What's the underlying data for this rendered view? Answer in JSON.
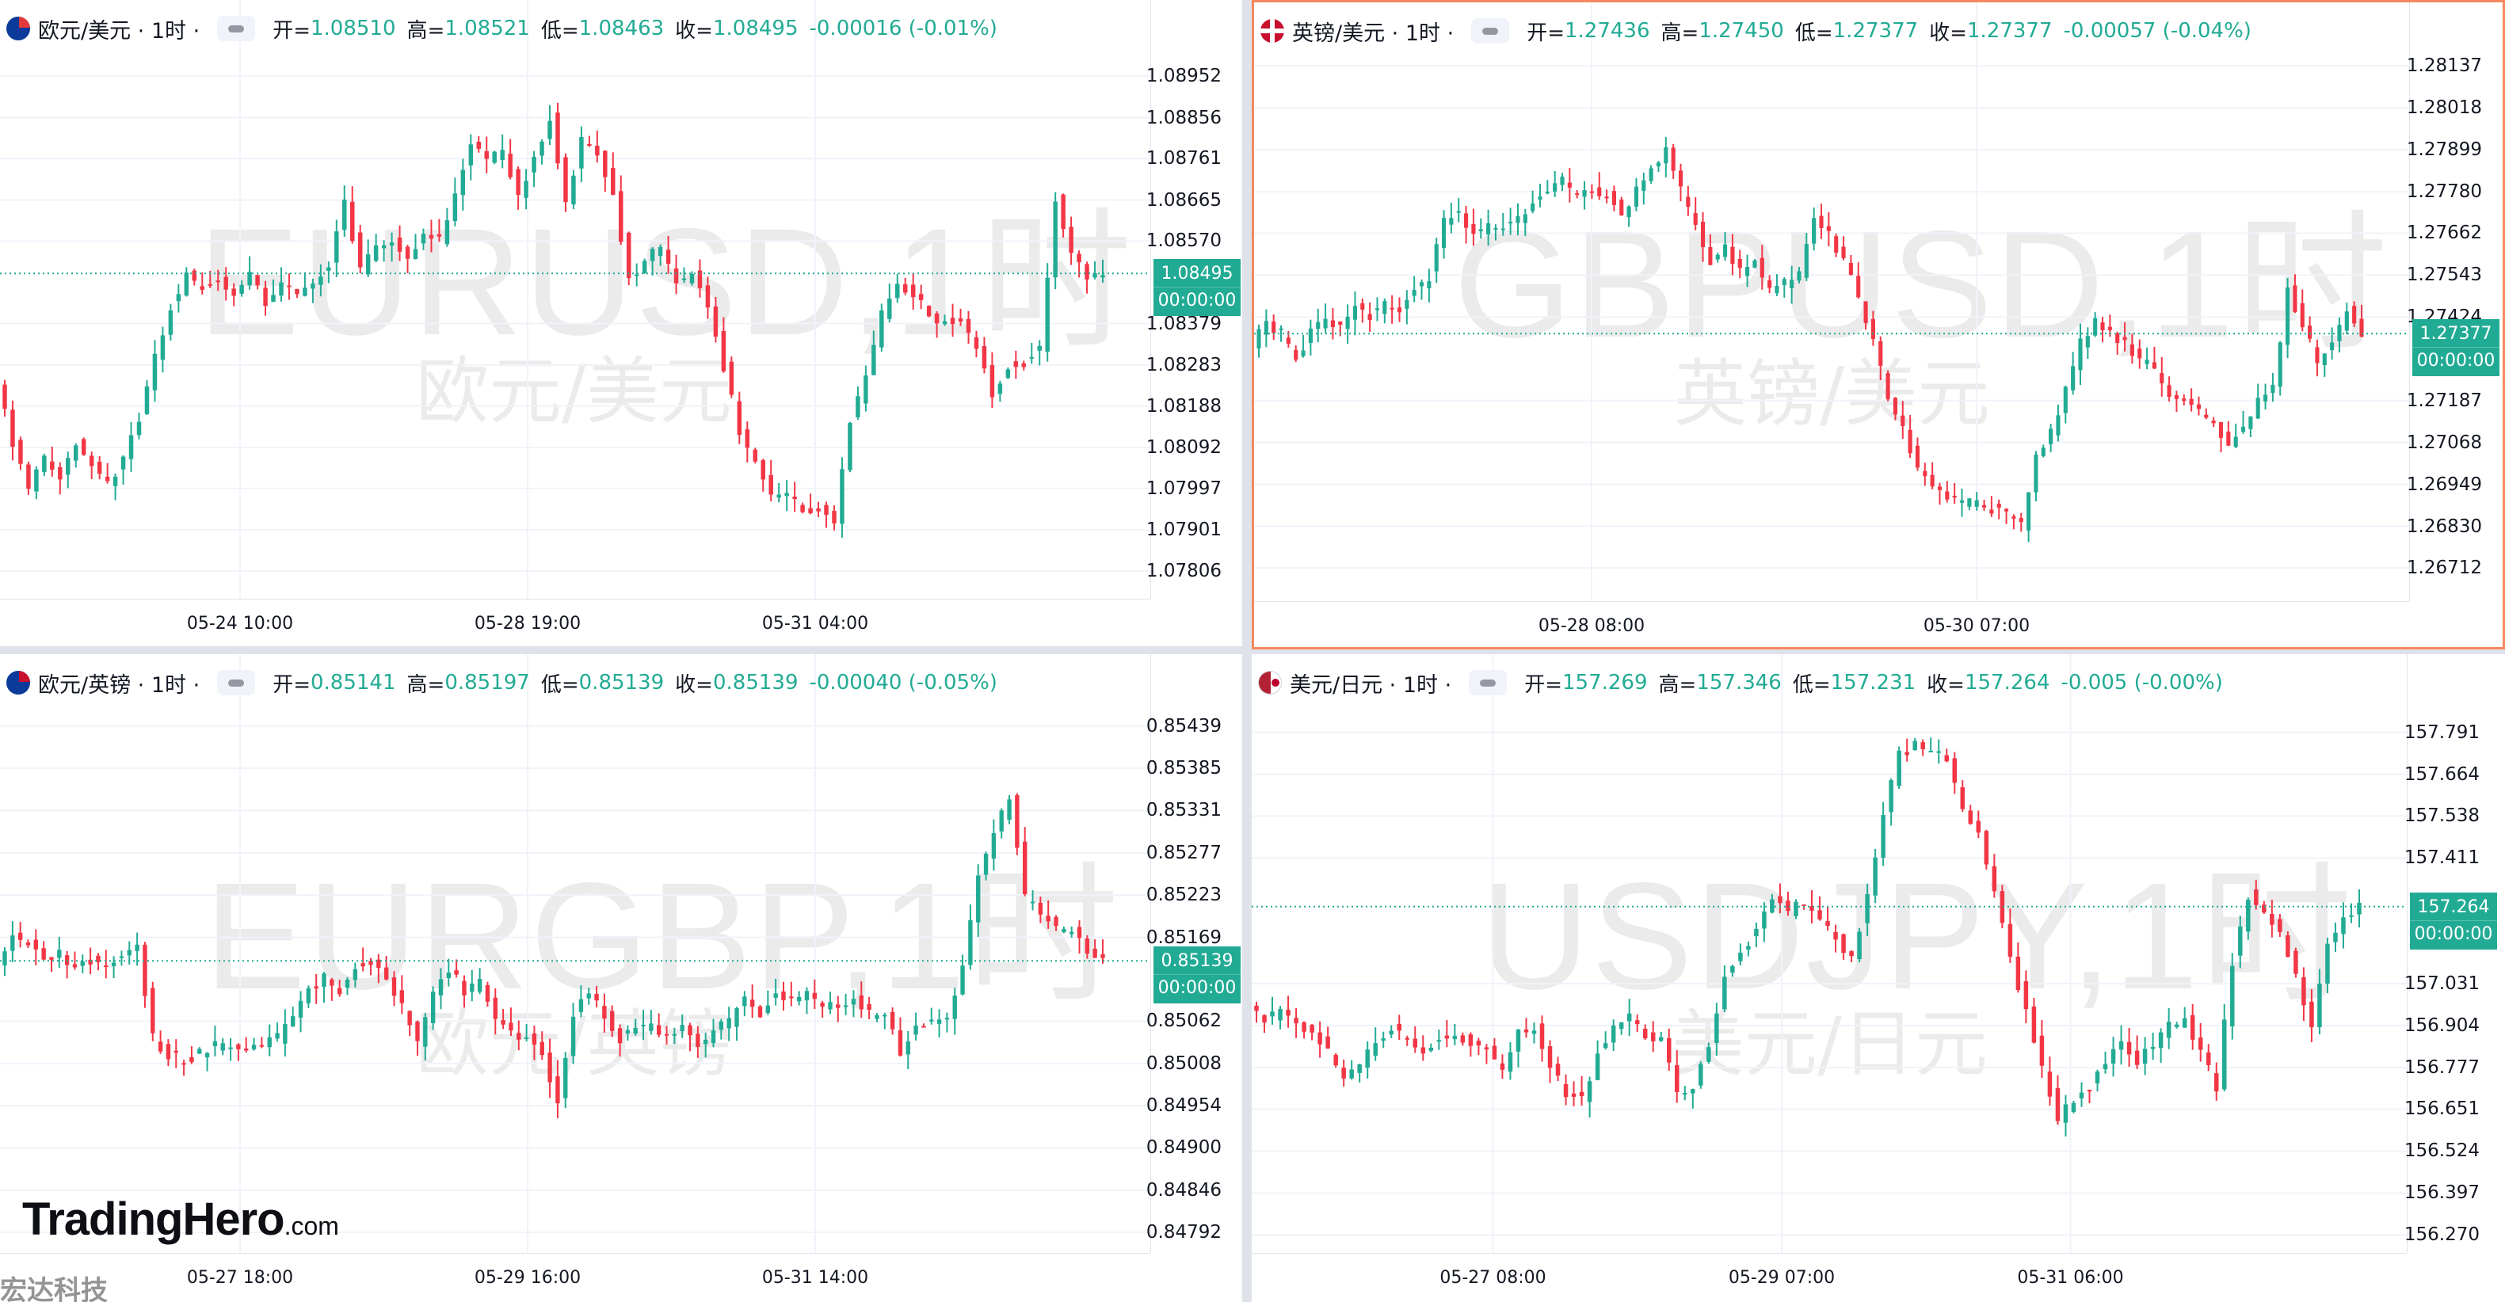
{
  "brand": {
    "logo": "TradingHero",
    "logo_suffix": ".com",
    "stamp": "宏达科技"
  },
  "colors": {
    "up": "#22ab94",
    "down": "#f23645",
    "grid": "#f0f3fa",
    "active_border": "#f5895f"
  },
  "chart_data": [
    {
      "type": "candlestick",
      "symbol": "欧元/美元 · 1时 ·",
      "watermark_symbol": "EURUSD,1时",
      "watermark_name": "欧元/美元",
      "flag_icon": "eu-us-flag-icon",
      "legend": {
        "open_label": "开=",
        "open": "1.08510",
        "high_label": "高=",
        "high": "1.08521",
        "low_label": "低=",
        "low": "1.08463",
        "close_label": "收=",
        "close": "1.08495",
        "change": "-0.00016 (-0.01%)"
      },
      "ylim": [
        1.0776,
        1.09
      ],
      "y_ticks": [
        "1.08952",
        "1.08856",
        "1.08761",
        "1.08665",
        "1.08570",
        "1.08379",
        "1.08283",
        "1.08188",
        "1.08092",
        "1.07997",
        "1.07901",
        "1.07806"
      ],
      "x_ticks": [
        "05-24 10:00",
        "05-28 19:00",
        "05-31 04:00"
      ],
      "last_price": 1.08495,
      "last_price_label": "1.08495",
      "countdown": "00:00:00",
      "active": false,
      "grid": true,
      "path": [
        1.0825,
        1.081,
        1.08,
        1.0807,
        1.0803,
        1.081,
        1.0806,
        1.0801,
        1.0806,
        1.0816,
        1.083,
        1.0842,
        1.0849,
        1.0846,
        1.0848,
        1.0844,
        1.0849,
        1.0843,
        1.0847,
        1.0845,
        1.0848,
        1.0851,
        1.0866,
        1.085,
        1.0856,
        1.0857,
        1.0854,
        1.0858,
        1.0857,
        1.0867,
        1.088,
        1.0876,
        1.0878,
        1.0868,
        1.0876,
        1.0886,
        1.0866,
        1.088,
        1.0878,
        1.0868,
        1.0848,
        1.0853,
        1.0856,
        1.0847,
        1.0849,
        1.0842,
        1.0828,
        1.0813,
        1.0806,
        1.0798,
        1.0798,
        1.0795,
        1.0795,
        1.0792,
        1.0816,
        1.0825,
        1.084,
        1.0847,
        1.0845,
        1.084,
        1.0838,
        1.0838,
        1.0833,
        1.0822,
        1.0828,
        1.0829,
        1.0832,
        1.0867,
        1.0855,
        1.0848,
        1.085
      ]
    },
    {
      "type": "candlestick",
      "symbol": "英镑/美元 · 1时 ·",
      "watermark_symbol": "GBPUSD,1时",
      "watermark_name": "英镑/美元",
      "flag_icon": "gb-us-flag-icon",
      "legend": {
        "open_label": "开=",
        "open": "1.27436",
        "high_label": "高=",
        "high": "1.27450",
        "low_label": "低=",
        "low": "1.27377",
        "close_label": "收=",
        "close": "1.27377",
        "change": "-0.00057 (-0.04%)"
      },
      "ylim": [
        1.2664,
        1.2816
      ],
      "y_ticks": [
        "1.28137",
        "1.28018",
        "1.27899",
        "1.27780",
        "1.27662",
        "1.27543",
        "1.27424",
        "1.27187",
        "1.27068",
        "1.26949",
        "1.26830",
        "1.26712"
      ],
      "x_ticks": [
        "05-28 08:00",
        "05-30 07:00"
      ],
      "last_price": 1.27377,
      "last_price_label": "1.27377",
      "countdown": "00:00:00",
      "active": true,
      "grid": true,
      "path": [
        1.2735,
        1.274,
        1.2738,
        1.273,
        1.2738,
        1.2742,
        1.274,
        1.2745,
        1.2743,
        1.2746,
        1.2744,
        1.275,
        1.2754,
        1.277,
        1.2772,
        1.2766,
        1.2768,
        1.2768,
        1.277,
        1.2775,
        1.2778,
        1.2782,
        1.2776,
        1.2779,
        1.2777,
        1.2772,
        1.2778,
        1.2785,
        1.279,
        1.2778,
        1.2768,
        1.2758,
        1.2762,
        1.2755,
        1.2758,
        1.275,
        1.2752,
        1.2755,
        1.277,
        1.2766,
        1.2758,
        1.2748,
        1.2735,
        1.272,
        1.271,
        1.27,
        1.2695,
        1.2692,
        1.269,
        1.2689,
        1.2688,
        1.2686,
        1.2683,
        1.2702,
        1.271,
        1.2722,
        1.2735,
        1.2742,
        1.2738,
        1.2735,
        1.273,
        1.2728,
        1.272,
        1.2718,
        1.2715,
        1.2712,
        1.2705,
        1.2712,
        1.2718,
        1.2722,
        1.275,
        1.274,
        1.273,
        1.2735,
        1.2745,
        1.2738
      ]
    },
    {
      "type": "candlestick",
      "symbol": "欧元/英镑 · 1时 ·",
      "watermark_symbol": "EURGBP,1时",
      "watermark_name": "欧元/英镑",
      "flag_icon": "eu-gb-flag-icon",
      "legend": {
        "open_label": "开=",
        "open": "0.85141",
        "high_label": "高=",
        "high": "0.85197",
        "low_label": "低=",
        "low": "0.85139",
        "close_label": "收=",
        "close": "0.85139",
        "change": "-0.00040 (-0.05%)"
      },
      "ylim": [
        0.84776,
        0.8546
      ],
      "y_ticks": [
        "0.85439",
        "0.85385",
        "0.85331",
        "0.85277",
        "0.85223",
        "0.85169",
        "0.85062",
        "0.85008",
        "0.84954",
        "0.84900",
        "0.84846",
        "0.84792"
      ],
      "x_ticks": [
        "05-27 18:00",
        "05-29 16:00",
        "05-31 14:00"
      ],
      "last_price": 0.85139,
      "last_price_label": "0.85139",
      "countdown": "00:00:00",
      "active": false,
      "grid": true,
      "path": [
        0.8514,
        0.8517,
        0.8516,
        0.8514,
        0.8515,
        0.8513,
        0.8514,
        0.8513,
        0.8515,
        0.8516,
        0.8504,
        0.8502,
        0.8501,
        0.8502,
        0.8503,
        0.8503,
        0.8502,
        0.8503,
        0.8504,
        0.8507,
        0.851,
        0.8512,
        0.851,
        0.8513,
        0.8514,
        0.8512,
        0.8508,
        0.8503,
        0.851,
        0.8513,
        0.851,
        0.8511,
        0.8507,
        0.8505,
        0.8504,
        0.8502,
        0.8496,
        0.8507,
        0.851,
        0.8507,
        0.8504,
        0.8505,
        0.8506,
        0.8504,
        0.8506,
        0.8503,
        0.8505,
        0.8506,
        0.8509,
        0.8507,
        0.851,
        0.8509,
        0.851,
        0.8508,
        0.8508,
        0.8509,
        0.8507,
        0.8507,
        0.8502,
        0.8506,
        0.8506,
        0.8507,
        0.8513,
        0.8525,
        0.853,
        0.8535,
        0.8522,
        0.852,
        0.8518,
        0.8518,
        0.8515,
        0.8514
      ]
    },
    {
      "type": "candlestick",
      "symbol": "美元/日元 · 1时 ·",
      "watermark_symbol": "USDJPY,1时",
      "watermark_name": "美元/日元",
      "flag_icon": "us-jp-flag-icon",
      "legend": {
        "open_label": "开=",
        "open": "157.269",
        "high_label": "高=",
        "high": "157.346",
        "low_label": "低=",
        "low": "157.231",
        "close_label": "收=",
        "close": "157.264",
        "change": "-0.005 (-0.00%)"
      },
      "ylim": [
        156.24,
        157.86
      ],
      "y_ticks": [
        "157.791",
        "157.664",
        "157.538",
        "157.411",
        "157.031",
        "156.904",
        "156.777",
        "156.651",
        "156.524",
        "156.397",
        "156.270"
      ],
      "x_ticks": [
        "05-27 08:00",
        "05-29 07:00",
        "05-31 06:00"
      ],
      "last_price": 157.264,
      "last_price_label": "157.264",
      "countdown": "00:00:00",
      "active": false,
      "grid": true,
      "path": [
        156.98,
        156.92,
        156.94,
        156.91,
        156.88,
        156.83,
        156.74,
        156.78,
        156.86,
        156.9,
        156.86,
        156.82,
        156.86,
        156.88,
        156.85,
        156.84,
        156.76,
        156.88,
        156.9,
        156.78,
        156.7,
        156.68,
        156.82,
        156.9,
        156.93,
        156.88,
        156.86,
        156.7,
        156.72,
        156.85,
        157.05,
        157.12,
        157.2,
        157.3,
        157.25,
        157.28,
        157.22,
        157.18,
        157.1,
        157.3,
        157.55,
        157.72,
        157.75,
        157.74,
        157.7,
        157.56,
        157.48,
        157.3,
        157.1,
        156.95,
        156.78,
        156.62,
        156.68,
        156.72,
        156.8,
        156.86,
        156.8,
        156.84,
        156.9,
        156.92,
        156.82,
        156.72,
        157.1,
        157.3,
        157.25,
        157.18,
        157.05,
        156.9,
        157.15,
        157.23,
        157.26
      ]
    }
  ]
}
